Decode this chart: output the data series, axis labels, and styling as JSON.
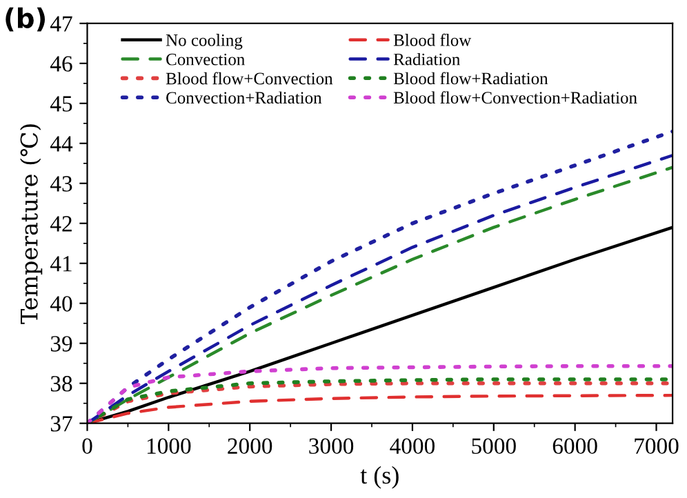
{
  "chart_data": {
    "type": "line",
    "xlabel": "t (s)",
    "ylabel": "Temperature (℃)",
    "annotations": [
      "(b)"
    ],
    "x": [
      0,
      500,
      1000,
      2000,
      3000,
      4000,
      5000,
      6000,
      7200
    ],
    "xlim": [
      0,
      7200
    ],
    "xticks": [
      0,
      1000,
      2000,
      3000,
      4000,
      5000,
      6000,
      7000
    ],
    "ylim": [
      37,
      47
    ],
    "yticks": [
      37,
      38,
      39,
      40,
      41,
      42,
      43,
      44,
      45,
      46,
      47
    ],
    "grid": false,
    "legend": "top",
    "marker": "none",
    "series": [
      {
        "name": "No cooling",
        "color": "#000000",
        "line_style": "solid",
        "values": [
          37,
          37.3,
          37.65,
          38.3,
          39.0,
          39.7,
          40.4,
          41.1,
          41.9
        ]
      },
      {
        "name": "Blood flow",
        "color": "#e03030",
        "line_style": "dashed",
        "values": [
          37,
          37.25,
          37.4,
          37.55,
          37.62,
          37.66,
          37.68,
          37.69,
          37.7
        ]
      },
      {
        "name": "Convection",
        "color": "#2a8a2a",
        "line_style": "dashed",
        "values": [
          37,
          37.6,
          38.15,
          39.25,
          40.2,
          41.1,
          41.9,
          42.6,
          43.4
        ]
      },
      {
        "name": "Radiation",
        "color": "#1a1aa0",
        "line_style": "dashed",
        "values": [
          37,
          37.7,
          38.3,
          39.45,
          40.45,
          41.4,
          42.2,
          42.9,
          43.7
        ]
      },
      {
        "name": "Blood flow+Convection",
        "color": "#e04040",
        "line_style": "dotted",
        "values": [
          37,
          37.55,
          37.75,
          37.92,
          37.98,
          38.0,
          38.0,
          38.0,
          38.0
        ]
      },
      {
        "name": "Blood flow+Radiation",
        "color": "#208020",
        "line_style": "dotted",
        "values": [
          37,
          37.6,
          37.8,
          38.0,
          38.05,
          38.08,
          38.1,
          38.1,
          38.1
        ]
      },
      {
        "name": "Convection+Radiation",
        "color": "#2020a0",
        "line_style": "dotted",
        "values": [
          37,
          37.9,
          38.6,
          39.9,
          41.05,
          42.0,
          42.75,
          43.45,
          44.3
        ]
      },
      {
        "name": "Blood flow+Convection+Radiation",
        "color": "#d040d0",
        "line_style": "dotted",
        "values": [
          37,
          37.9,
          38.15,
          38.3,
          38.38,
          38.4,
          38.42,
          38.43,
          38.43
        ]
      }
    ]
  }
}
